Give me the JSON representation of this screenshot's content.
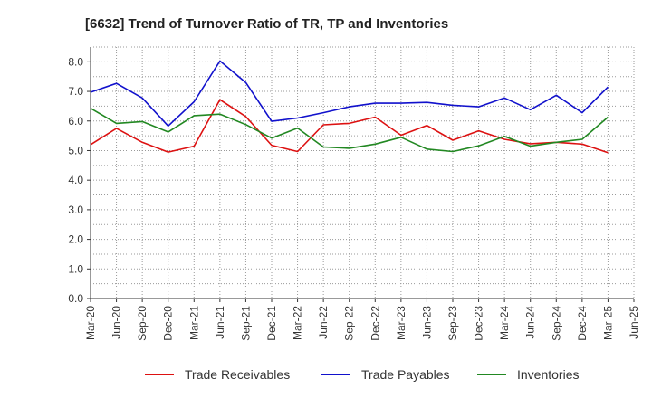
{
  "chart_data": {
    "type": "line",
    "title": "[6632]  Trend of Turnover Ratio of TR, TP and Inventories",
    "xlabel": "",
    "ylabel": "",
    "ylim": [
      0,
      8.5
    ],
    "yticks": [
      "0.0",
      "1.0",
      "2.0",
      "3.0",
      "4.0",
      "5.0",
      "6.0",
      "7.0",
      "8.0"
    ],
    "x": [
      "Mar-20",
      "Jun-20",
      "Sep-20",
      "Dec-20",
      "Mar-21",
      "Jun-21",
      "Sep-21",
      "Dec-21",
      "Mar-22",
      "Jun-22",
      "Sep-22",
      "Dec-22",
      "Mar-23",
      "Jun-23",
      "Sep-23",
      "Dec-23",
      "Mar-24",
      "Jun-24",
      "Sep-24",
      "Dec-24",
      "Mar-25",
      "Jun-25"
    ],
    "grid": true,
    "legend_position": "bottom",
    "series": [
      {
        "name": "Trade Receivables",
        "color": "#dd1111",
        "values": [
          5.2,
          5.75,
          5.28,
          4.95,
          5.15,
          6.72,
          6.15,
          5.18,
          4.97,
          5.87,
          5.92,
          6.13,
          5.52,
          5.85,
          5.35,
          5.67,
          5.38,
          5.23,
          5.28,
          5.22,
          4.93,
          null
        ]
      },
      {
        "name": "Trade Payables",
        "color": "#1111cc",
        "values": [
          6.97,
          7.27,
          6.78,
          5.83,
          6.65,
          8.03,
          7.3,
          5.99,
          6.1,
          6.28,
          6.48,
          6.6,
          6.6,
          6.63,
          6.53,
          6.48,
          6.78,
          6.38,
          6.87,
          6.28,
          7.15,
          null
        ]
      },
      {
        "name": "Inventories",
        "color": "#228822",
        "values": [
          6.43,
          5.92,
          5.98,
          5.63,
          6.18,
          6.23,
          5.88,
          5.42,
          5.76,
          5.12,
          5.08,
          5.22,
          5.45,
          5.05,
          4.97,
          5.16,
          5.48,
          5.15,
          5.28,
          5.38,
          6.13,
          null
        ]
      }
    ]
  }
}
